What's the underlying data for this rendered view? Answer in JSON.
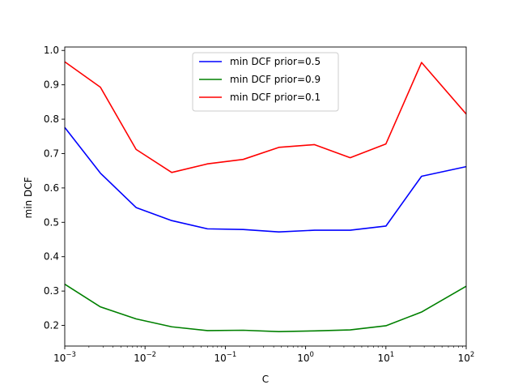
{
  "chart_data": {
    "type": "line",
    "title": "",
    "xlabel": "C",
    "ylabel": "min DCF",
    "xscale": "log",
    "xlim": [
      0.001,
      100
    ],
    "ylim": [
      0.14,
      1.01
    ],
    "grid": false,
    "legend_position": "top-center",
    "x": [
      0.001,
      0.00278,
      0.00774,
      0.0215,
      0.0599,
      0.167,
      0.464,
      1.29,
      3.59,
      10,
      27.8,
      100
    ],
    "x_ticks": [
      {
        "value": 0.001,
        "base": "10",
        "exp": "−3"
      },
      {
        "value": 0.01,
        "base": "10",
        "exp": "−2"
      },
      {
        "value": 0.1,
        "base": "10",
        "exp": "−1"
      },
      {
        "value": 1,
        "base": "10",
        "exp": "0"
      },
      {
        "value": 10,
        "base": "10",
        "exp": "1"
      },
      {
        "value": 100,
        "base": "10",
        "exp": "2"
      }
    ],
    "y_ticks": [
      {
        "value": 0.2,
        "label": "0.2"
      },
      {
        "value": 0.3,
        "label": "0.3"
      },
      {
        "value": 0.4,
        "label": "0.4"
      },
      {
        "value": 0.5,
        "label": "0.5"
      },
      {
        "value": 0.6,
        "label": "0.6"
      },
      {
        "value": 0.7,
        "label": "0.7"
      },
      {
        "value": 0.8,
        "label": "0.8"
      },
      {
        "value": 0.9,
        "label": "0.9"
      },
      {
        "value": 1.0,
        "label": "1.0"
      }
    ],
    "series": [
      {
        "name": "min DCF prior=0.5",
        "color": "#0000ff",
        "values": [
          0.776,
          0.643,
          0.543,
          0.505,
          0.481,
          0.479,
          0.472,
          0.477,
          0.477,
          0.489,
          0.634,
          0.662
        ]
      },
      {
        "name": "min DCF prior=0.9",
        "color": "#008000",
        "values": [
          0.32,
          0.254,
          0.219,
          0.196,
          0.185,
          0.186,
          0.182,
          0.184,
          0.187,
          0.199,
          0.239,
          0.314
        ]
      },
      {
        "name": "min DCF prior=0.1",
        "color": "#ff0000",
        "values": [
          0.967,
          0.893,
          0.712,
          0.645,
          0.67,
          0.683,
          0.718,
          0.726,
          0.688,
          0.728,
          0.965,
          0.815
        ]
      }
    ]
  }
}
